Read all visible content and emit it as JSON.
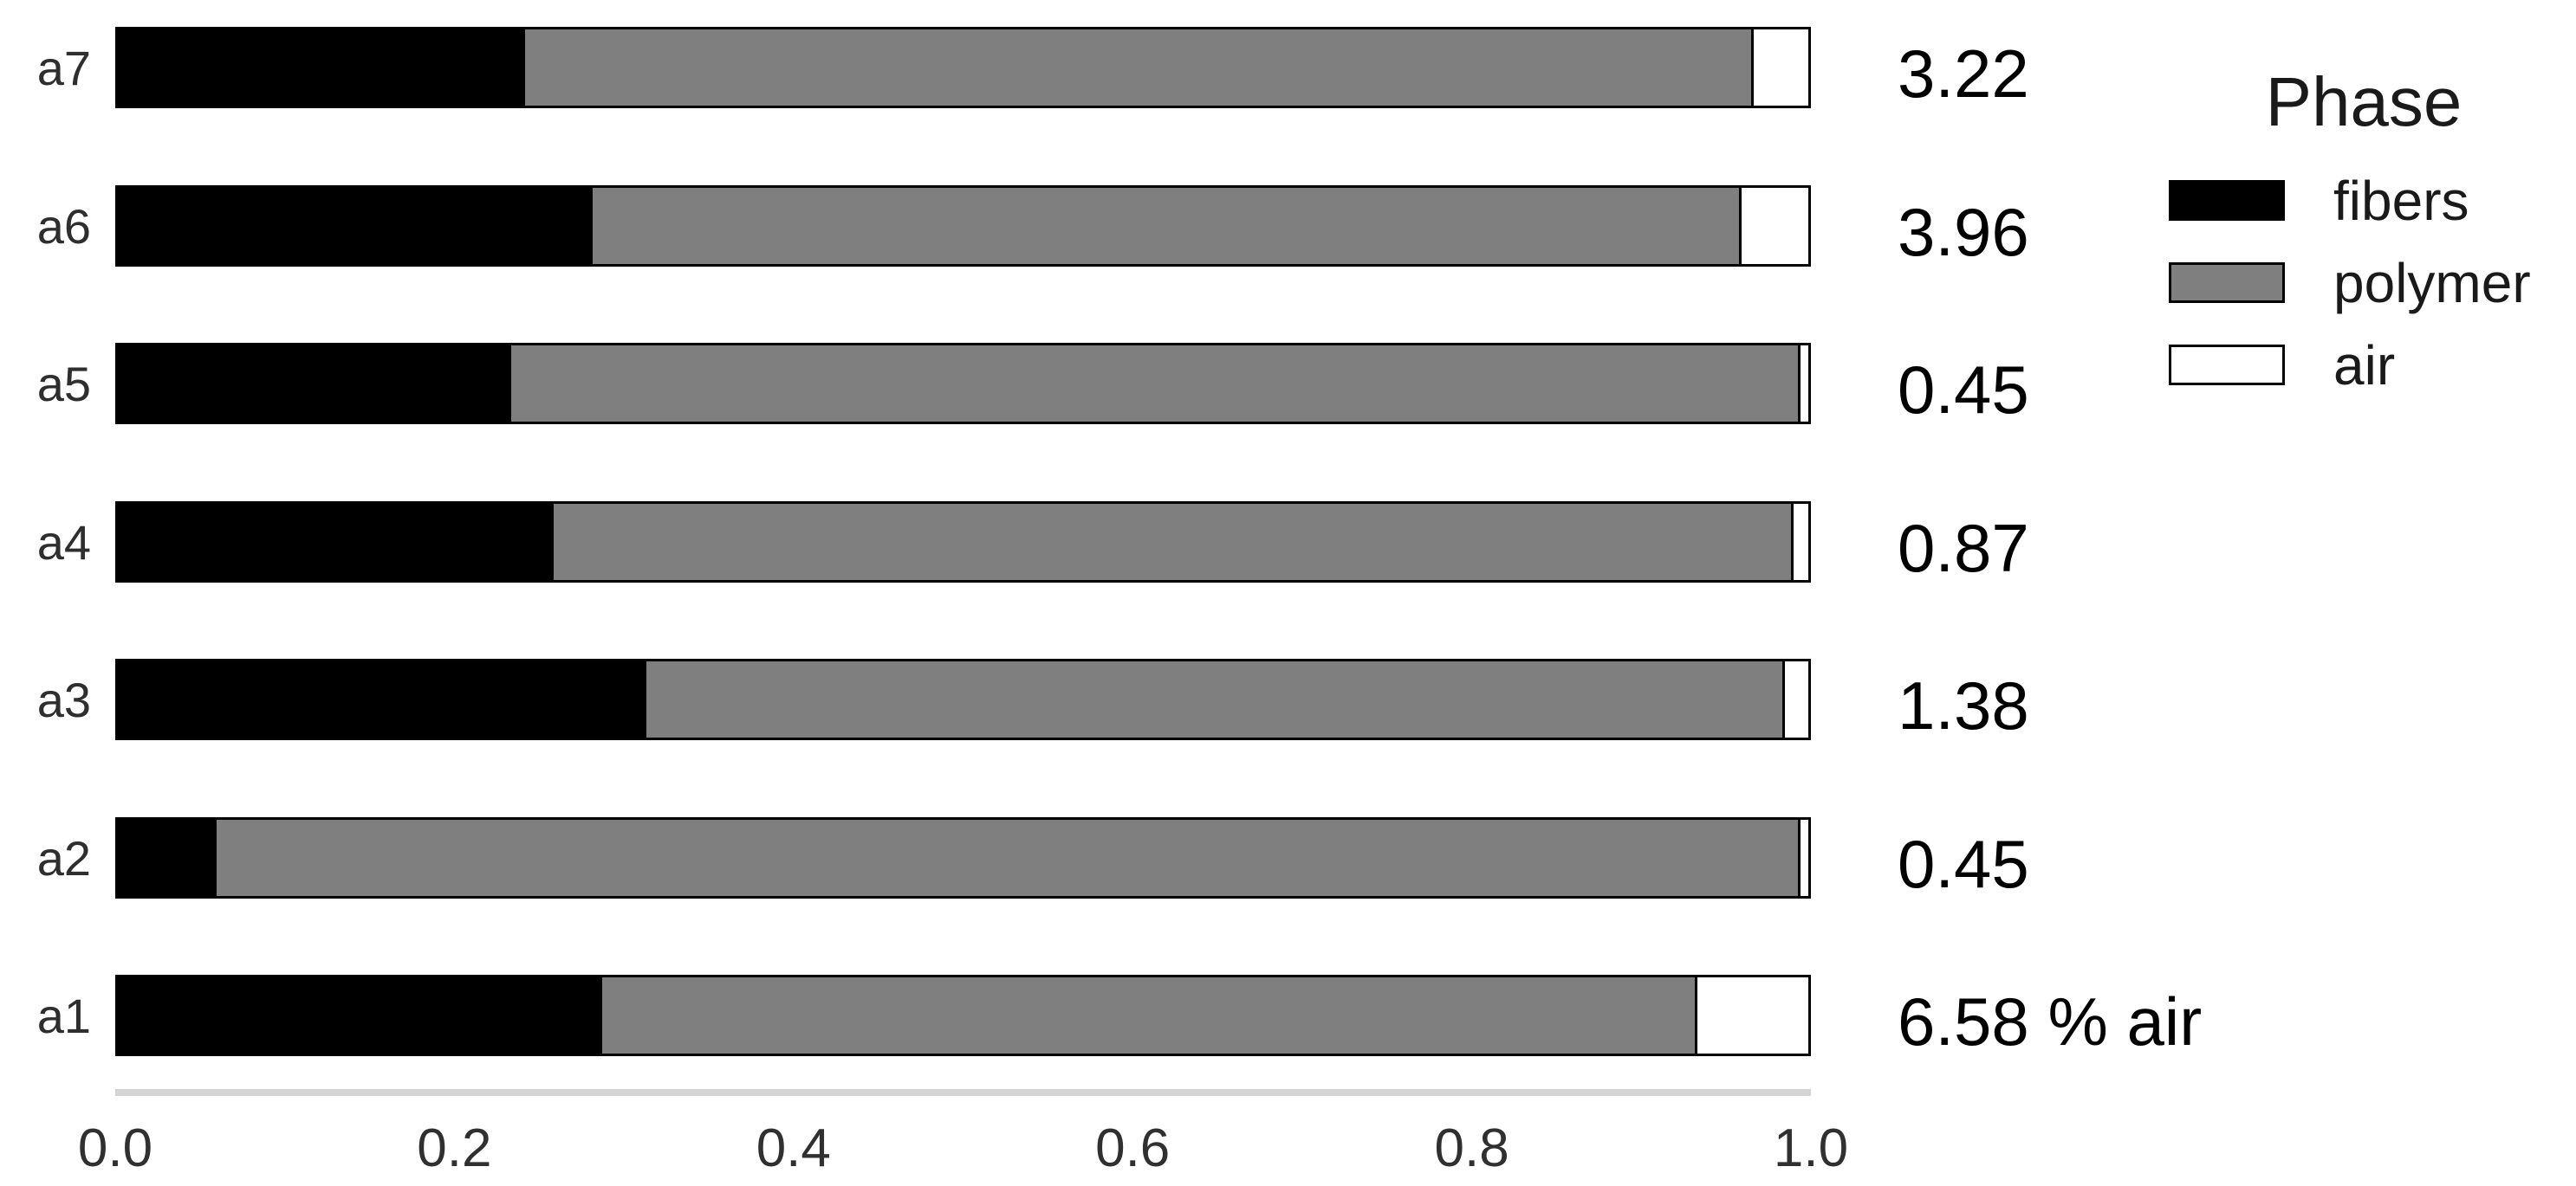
{
  "chart_data": {
    "type": "bar",
    "variant": "horizontal_stacked",
    "title": "",
    "xlabel": "",
    "ylabel": "",
    "xlim": [
      0,
      1
    ],
    "grid": "off",
    "categories_top_to_bottom": [
      "a7",
      "a6",
      "a5",
      "a4",
      "a3",
      "a2",
      "a1"
    ],
    "series": [
      {
        "name": "fibers",
        "color": "#000000",
        "values": [
          0.24,
          0.28,
          0.232,
          0.257,
          0.312,
          0.057,
          0.286
        ]
      },
      {
        "name": "polymer",
        "color": "#7f7f7f",
        "values": [
          0.7278,
          0.6804,
          0.7635,
          0.7343,
          0.6742,
          0.9385,
          0.6482
        ]
      },
      {
        "name": "air",
        "color": "#ffffff",
        "values": [
          0.0322,
          0.0396,
          0.0045,
          0.0087,
          0.0138,
          0.0045,
          0.0658
        ]
      }
    ],
    "bar_labels": [
      "3.22",
      "3.96",
      "0.45",
      "0.87",
      "1.38",
      "0.45",
      "6.58 % air"
    ],
    "xticks": [
      "0.0",
      "0.2",
      "0.4",
      "0.6",
      "0.8",
      "1.0"
    ],
    "legend": {
      "title": "Phase",
      "position": "right",
      "entries": [
        {
          "label": "fibers",
          "color": "#000000"
        },
        {
          "label": "polymer",
          "color": "#7f7f7f"
        },
        {
          "label": "air",
          "color": "#ffffff"
        }
      ]
    },
    "colors": {
      "axis_line": "#d4d4d4",
      "axis_text": "#303030",
      "bar_border": "#000000",
      "value_label_text": "#000000",
      "legend_text": "#1a1a1a"
    }
  }
}
